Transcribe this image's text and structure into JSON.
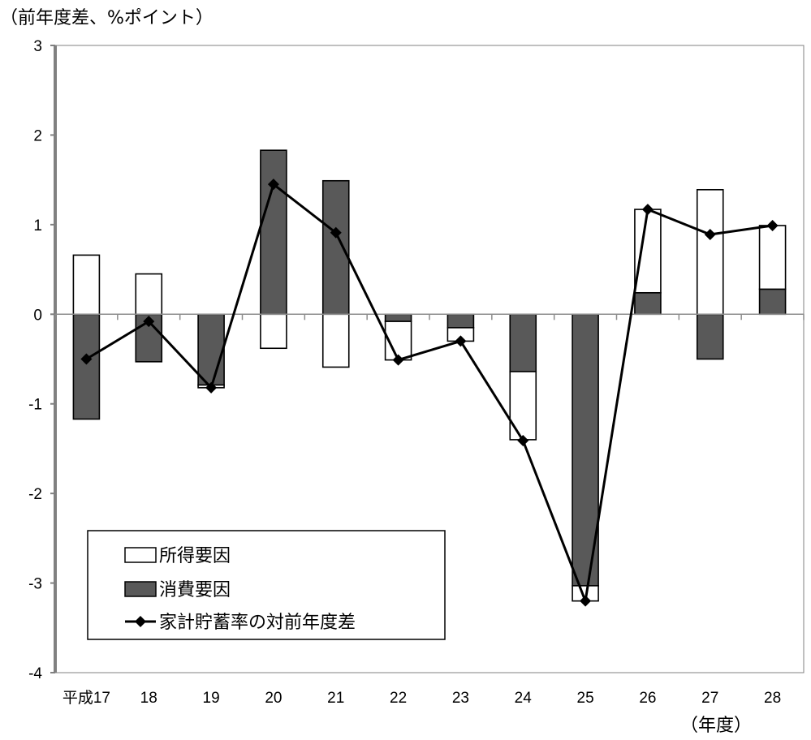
{
  "y_unit_label": "（前年度差、%ポイント）",
  "x_unit_label": "（年度）",
  "chart_data": {
    "type": "bar",
    "categories": [
      "平成17",
      "18",
      "19",
      "20",
      "21",
      "22",
      "23",
      "24",
      "25",
      "26",
      "27",
      "28"
    ],
    "series": [
      {
        "name": "所得要因",
        "kind": "stacked-bar",
        "color": "#ffffff",
        "values": [
          0.66,
          0.45,
          -0.03,
          -0.38,
          -0.59,
          -0.43,
          -0.15,
          -0.76,
          -0.17,
          0.93,
          1.39,
          0.71
        ]
      },
      {
        "name": "消費要因",
        "kind": "stacked-bar",
        "color": "#595959",
        "values": [
          -1.17,
          -0.53,
          -0.79,
          1.83,
          1.49,
          -0.08,
          -0.15,
          -0.64,
          -3.03,
          0.24,
          -0.5,
          0.28
        ]
      },
      {
        "name": "家計貯蓄率の対前年度差",
        "kind": "line",
        "color": "#000000",
        "values": [
          -0.5,
          -0.08,
          -0.82,
          1.45,
          0.91,
          -0.51,
          -0.3,
          -1.41,
          -3.2,
          1.17,
          0.89,
          0.99
        ]
      }
    ],
    "yticks": [
      3,
      2,
      1,
      0,
      -1,
      -2,
      -3,
      -4
    ],
    "ylim": [
      -4,
      3
    ],
    "legend_position": "bottom-left",
    "grid": false
  }
}
